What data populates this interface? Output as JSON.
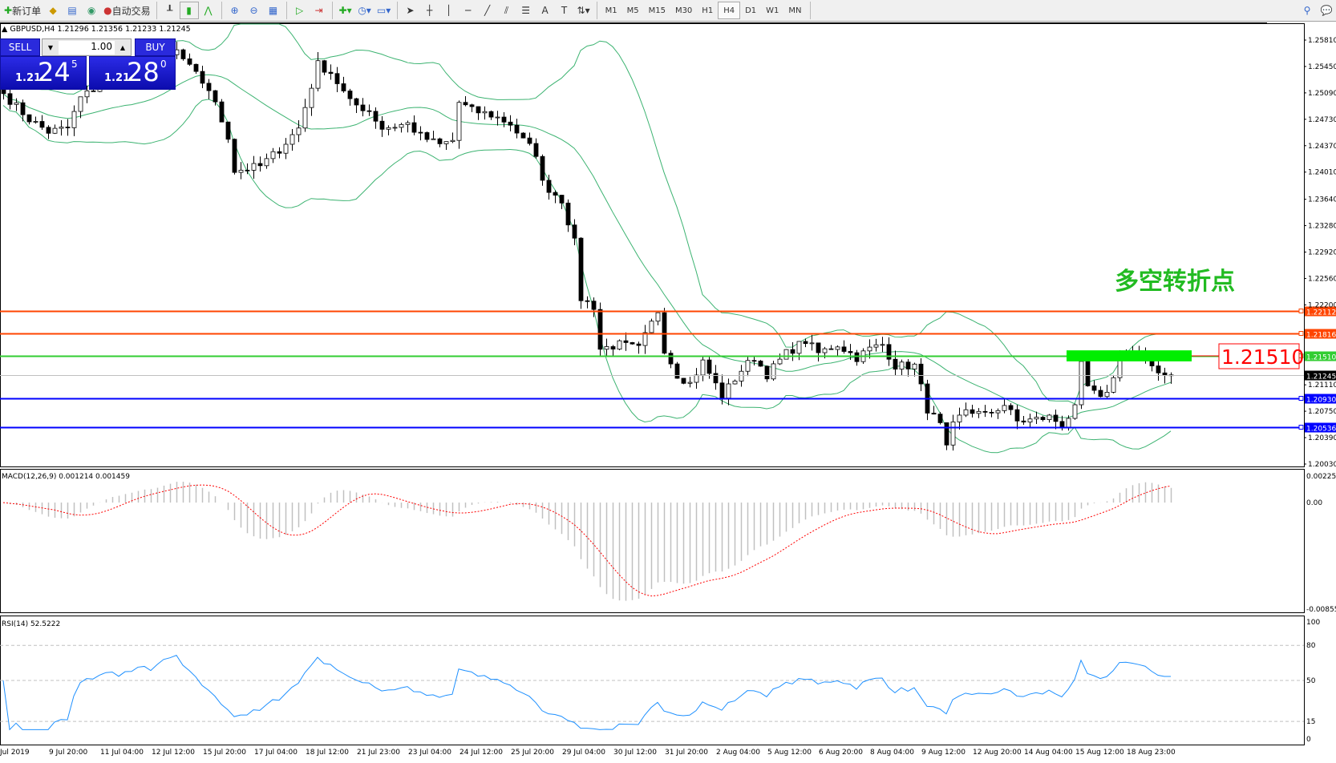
{
  "toolbar": {
    "new_order": "新订单",
    "auto_trading": "自动交易",
    "icons": [
      "new-order-icon",
      "market-watch-icon",
      "history-icon",
      "signals-icon",
      "auto-trading-icon",
      "bar-chart-icon",
      "candlestick-icon",
      "line-chart-icon",
      "zoom-in-icon",
      "zoom-out-icon",
      "tile-windows-icon",
      "auto-scroll-icon",
      "chart-shift-icon",
      "indicators-icon",
      "periods-icon",
      "templates-icon",
      "cursor-icon",
      "crosshair-icon",
      "vertical-line-icon",
      "horizontal-line-icon",
      "trendline-icon",
      "equidistant-channel-icon",
      "fibonacci-icon",
      "text-icon",
      "text-label-icon",
      "arrows-icon",
      "search-icon",
      "chat-icon"
    ],
    "timeframes": [
      "M1",
      "M5",
      "M15",
      "M30",
      "H1",
      "H4",
      "D1",
      "W1",
      "MN"
    ],
    "active_timeframe": "H4"
  },
  "chart": {
    "symbol_line": "GBPUSD,H4  1.21296 1.21356 1.21233 1.21245",
    "annotation": "多空转折点",
    "annotation_color": "#22bb22",
    "level_label": "1.21510",
    "bid_price": 1.21245
  },
  "oneclick": {
    "sell": "SELL",
    "buy": "BUY",
    "lot": "1.00",
    "sell_price": {
      "prefix": "1.21",
      "big": "24",
      "sup": "5"
    },
    "buy_price": {
      "prefix": "1.21",
      "big": "28",
      "sup": "0"
    }
  },
  "price_axis": [
    "1.25810",
    "1.25450",
    "1.25090",
    "1.24730",
    "1.24370",
    "1.24010",
    "1.23640",
    "1.23280",
    "1.22920",
    "1.22560",
    "1.22200",
    "1.21110",
    "1.20750",
    "1.20390",
    "1.20030"
  ],
  "levels": [
    {
      "price": "1.22112",
      "color": "#ff4500"
    },
    {
      "price": "1.21816",
      "color": "#ff4500"
    },
    {
      "price": "1.21510",
      "color": "#32cd32"
    },
    {
      "price": "1.20930",
      "color": "#0000ff"
    },
    {
      "price": "1.20536",
      "color": "#0000ff"
    }
  ],
  "current_price_tag": "1.21245",
  "zone": {
    "from": 1.2143,
    "to": 1.2158,
    "color": "#00ee00"
  },
  "close_path": [
    [
      0,
      1.2508
    ],
    [
      4,
      1.2473
    ],
    [
      7,
      1.2456
    ],
    [
      10,
      1.2461
    ],
    [
      12,
      1.2502
    ],
    [
      15,
      1.252
    ],
    [
      19,
      1.2525
    ],
    [
      23,
      1.2537
    ],
    [
      27,
      1.2566
    ],
    [
      29,
      1.2543
    ],
    [
      32,
      1.2514
    ],
    [
      35,
      1.245
    ],
    [
      36,
      1.2403
    ],
    [
      40,
      1.2409
    ],
    [
      43,
      1.2432
    ],
    [
      46,
      1.2461
    ],
    [
      47,
      1.249
    ],
    [
      49,
      1.2548
    ],
    [
      51,
      1.2537
    ],
    [
      54,
      1.2496
    ],
    [
      57,
      1.2485
    ],
    [
      59,
      1.2461
    ],
    [
      63,
      1.2467
    ],
    [
      65,
      1.245
    ],
    [
      68,
      1.2438
    ],
    [
      70,
      1.2444
    ],
    [
      71,
      1.2496
    ],
    [
      73,
      1.2485
    ],
    [
      76,
      1.2479
    ],
    [
      79,
      1.2467
    ],
    [
      81,
      1.2444
    ],
    [
      83,
      1.2427
    ],
    [
      84,
      1.2386
    ],
    [
      87,
      1.2363
    ],
    [
      89,
      1.2305
    ],
    [
      90,
      1.2229
    ],
    [
      92,
      1.2218
    ],
    [
      93,
      1.216
    ],
    [
      96,
      1.2166
    ],
    [
      99,
      1.216
    ],
    [
      102,
      1.2212
    ],
    [
      103,
      1.216
    ],
    [
      105,
      1.2125
    ],
    [
      107,
      1.2113
    ],
    [
      109,
      1.2142
    ],
    [
      112,
      1.2096
    ],
    [
      115,
      1.2131
    ],
    [
      117,
      1.2148
    ],
    [
      119,
      1.2125
    ],
    [
      122,
      1.2154
    ],
    [
      125,
      1.2171
    ],
    [
      127,
      1.2154
    ],
    [
      130,
      1.2166
    ],
    [
      133,
      1.2148
    ],
    [
      135,
      1.216
    ],
    [
      137,
      1.2166
    ],
    [
      139,
      1.2137
    ],
    [
      142,
      1.2137
    ],
    [
      144,
      1.2078
    ],
    [
      146,
      1.2055
    ],
    [
      147,
      1.2023
    ],
    [
      148,
      1.2055
    ],
    [
      150,
      1.2078
    ],
    [
      153,
      1.2069
    ],
    [
      156,
      1.2084
    ],
    [
      158,
      1.2061
    ],
    [
      161,
      1.2064
    ],
    [
      163,
      1.2067
    ],
    [
      165,
      1.2057
    ],
    [
      167,
      1.2078
    ],
    [
      168,
      1.2137
    ],
    [
      169,
      1.2108
    ],
    [
      171,
      1.209
    ],
    [
      173,
      1.2119
    ],
    [
      174,
      1.216
    ],
    [
      176,
      1.2154
    ],
    [
      179,
      1.2137
    ],
    [
      181,
      1.2125
    ],
    [
      182,
      1.21245
    ]
  ],
  "macd": {
    "label": "MACD(12,26,9) 0.001214 0.001459",
    "axis": [
      "0.002256",
      "0.00",
      "-0.00855"
    ],
    "signal_color": "#ff0000",
    "hist_color": "#c0c0c0"
  },
  "rsi": {
    "label": "RSI(14) 52.5222",
    "axis": [
      "100",
      "80",
      "50",
      "15",
      "0"
    ],
    "color": "#1e90ff"
  },
  "time_axis": [
    "Jul 2019",
    "9 Jul 20:00",
    "11 Jul 04:00",
    "12 Jul 12:00",
    "15 Jul 20:00",
    "17 Jul 04:00",
    "18 Jul 12:00",
    "21 Jul 23:00",
    "23 Jul 04:00",
    "24 Jul 12:00",
    "25 Jul 20:00",
    "29 Jul 04:00",
    "30 Jul 12:00",
    "31 Jul 20:00",
    "2 Aug 04:00",
    "5 Aug 12:00",
    "6 Aug 20:00",
    "8 Aug 04:00",
    "9 Aug 12:00",
    "12 Aug 20:00",
    "14 Aug 04:00",
    "15 Aug 12:00",
    "18 Aug 23:00"
  ]
}
